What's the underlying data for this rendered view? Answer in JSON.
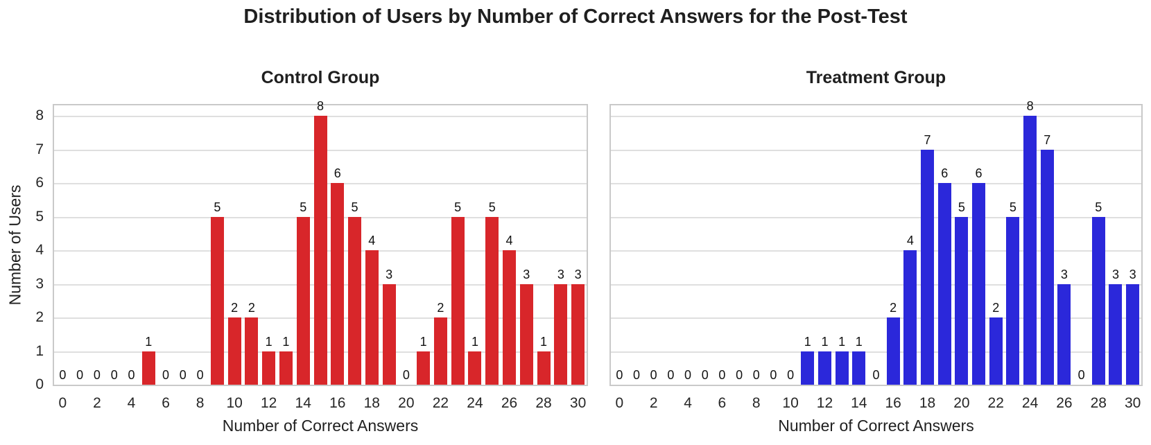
{
  "figure": {
    "title": "Distribution of Users by Number of Correct Answers for the Post-Test",
    "ylabel": "Number of Users",
    "background_color": "#ffffff",
    "grid_color": "#dfdfdf",
    "spine_color": "#c9c9c9",
    "text_color": "#1f1f1f"
  },
  "chart_data": [
    {
      "type": "bar",
      "title": "Control Group",
      "xlabel": "Number of Correct Answers",
      "ylabel": "Number of Users",
      "bar_color": "#d8262a",
      "categories": [
        0,
        1,
        2,
        3,
        4,
        5,
        6,
        7,
        8,
        9,
        10,
        11,
        12,
        13,
        14,
        15,
        16,
        17,
        18,
        19,
        20,
        21,
        22,
        23,
        24,
        25,
        26,
        27,
        28,
        29,
        30
      ],
      "values": [
        0,
        0,
        0,
        0,
        0,
        1,
        0,
        0,
        0,
        5,
        2,
        2,
        1,
        1,
        5,
        8,
        6,
        5,
        4,
        3,
        0,
        1,
        2,
        5,
        1,
        5,
        4,
        3,
        1,
        3,
        3
      ],
      "bar_value_labels_shown": true,
      "ylim": [
        0,
        8.4
      ],
      "yticks": [
        0,
        1,
        2,
        3,
        4,
        5,
        6,
        7,
        8
      ],
      "xticks": [
        0,
        2,
        4,
        6,
        8,
        10,
        12,
        14,
        16,
        18,
        20,
        22,
        24,
        26,
        28,
        30
      ],
      "grid": "horizontal",
      "legend": "none"
    },
    {
      "type": "bar",
      "title": "Treatment Group",
      "xlabel": "Number of Correct Answers",
      "ylabel": "Number of Users",
      "bar_color": "#2b28da",
      "categories": [
        0,
        1,
        2,
        3,
        4,
        5,
        6,
        7,
        8,
        9,
        10,
        11,
        12,
        13,
        14,
        15,
        16,
        17,
        18,
        19,
        20,
        21,
        22,
        23,
        24,
        25,
        26,
        27,
        28,
        29,
        30
      ],
      "values": [
        0,
        0,
        0,
        0,
        0,
        0,
        0,
        0,
        0,
        0,
        0,
        1,
        1,
        1,
        1,
        0,
        2,
        4,
        7,
        6,
        5,
        6,
        2,
        5,
        8,
        7,
        3,
        0,
        5,
        3,
        3
      ],
      "bar_value_labels_shown": true,
      "ylim": [
        0,
        8.4
      ],
      "yticks": [
        0,
        1,
        2,
        3,
        4,
        5,
        6,
        7,
        8
      ],
      "xticks": [
        0,
        2,
        4,
        6,
        8,
        10,
        12,
        14,
        16,
        18,
        20,
        22,
        24,
        26,
        28,
        30
      ],
      "grid": "horizontal",
      "legend": "none"
    }
  ]
}
